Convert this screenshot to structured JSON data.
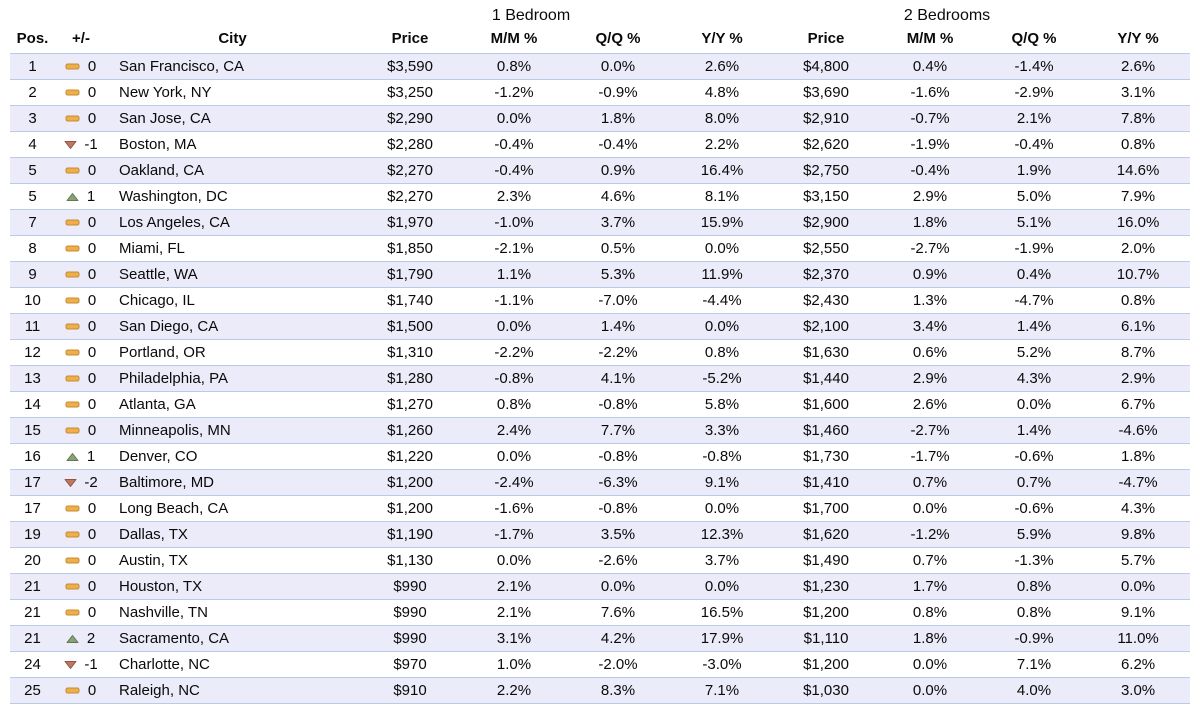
{
  "chart_data": {
    "type": "table",
    "group_headers": [
      "1 Bedroom",
      "2 Bedrooms"
    ],
    "columns": [
      "Pos.",
      "+/-",
      "City",
      "Price",
      "M/M %",
      "Q/Q %",
      "Y/Y %",
      "Price",
      "M/M %",
      "Q/Q %",
      "Y/Y %"
    ],
    "rows": [
      [
        "1",
        "same",
        "0",
        "San Francisco, CA",
        "$3,590",
        "0.8%",
        "0.0%",
        "2.6%",
        "$4,800",
        "0.4%",
        "-1.4%",
        "2.6%"
      ],
      [
        "2",
        "same",
        "0",
        "New York, NY",
        "$3,250",
        "-1.2%",
        "-0.9%",
        "4.8%",
        "$3,690",
        "-1.6%",
        "-2.9%",
        "3.1%"
      ],
      [
        "3",
        "same",
        "0",
        "San Jose, CA",
        "$2,290",
        "0.0%",
        "1.8%",
        "8.0%",
        "$2,910",
        "-0.7%",
        "2.1%",
        "7.8%"
      ],
      [
        "4",
        "down",
        "-1",
        "Boston, MA",
        "$2,280",
        "-0.4%",
        "-0.4%",
        "2.2%",
        "$2,620",
        "-1.9%",
        "-0.4%",
        "0.8%"
      ],
      [
        "5",
        "same",
        "0",
        "Oakland, CA",
        "$2,270",
        "-0.4%",
        "0.9%",
        "16.4%",
        "$2,750",
        "-0.4%",
        "1.9%",
        "14.6%"
      ],
      [
        "5",
        "up",
        "1",
        "Washington, DC",
        "$2,270",
        "2.3%",
        "4.6%",
        "8.1%",
        "$3,150",
        "2.9%",
        "5.0%",
        "7.9%"
      ],
      [
        "7",
        "same",
        "0",
        "Los Angeles, CA",
        "$1,970",
        "-1.0%",
        "3.7%",
        "15.9%",
        "$2,900",
        "1.8%",
        "5.1%",
        "16.0%"
      ],
      [
        "8",
        "same",
        "0",
        "Miami, FL",
        "$1,850",
        "-2.1%",
        "0.5%",
        "0.0%",
        "$2,550",
        "-2.7%",
        "-1.9%",
        "2.0%"
      ],
      [
        "9",
        "same",
        "0",
        "Seattle, WA",
        "$1,790",
        "1.1%",
        "5.3%",
        "11.9%",
        "$2,370",
        "0.9%",
        "0.4%",
        "10.7%"
      ],
      [
        "10",
        "same",
        "0",
        "Chicago, IL",
        "$1,740",
        "-1.1%",
        "-7.0%",
        "-4.4%",
        "$2,430",
        "1.3%",
        "-4.7%",
        "0.8%"
      ],
      [
        "11",
        "same",
        "0",
        "San Diego, CA",
        "$1,500",
        "0.0%",
        "1.4%",
        "0.0%",
        "$2,100",
        "3.4%",
        "1.4%",
        "6.1%"
      ],
      [
        "12",
        "same",
        "0",
        "Portland, OR",
        "$1,310",
        "-2.2%",
        "-2.2%",
        "0.8%",
        "$1,630",
        "0.6%",
        "5.2%",
        "8.7%"
      ],
      [
        "13",
        "same",
        "0",
        "Philadelphia, PA",
        "$1,280",
        "-0.8%",
        "4.1%",
        "-5.2%",
        "$1,440",
        "2.9%",
        "4.3%",
        "2.9%"
      ],
      [
        "14",
        "same",
        "0",
        "Atlanta, GA",
        "$1,270",
        "0.8%",
        "-0.8%",
        "5.8%",
        "$1,600",
        "2.6%",
        "0.0%",
        "6.7%"
      ],
      [
        "15",
        "same",
        "0",
        "Minneapolis, MN",
        "$1,260",
        "2.4%",
        "7.7%",
        "3.3%",
        "$1,460",
        "-2.7%",
        "1.4%",
        "-4.6%"
      ],
      [
        "16",
        "up",
        "1",
        "Denver, CO",
        "$1,220",
        "0.0%",
        "-0.8%",
        "-0.8%",
        "$1,730",
        "-1.7%",
        "-0.6%",
        "1.8%"
      ],
      [
        "17",
        "down",
        "-2",
        "Baltimore, MD",
        "$1,200",
        "-2.4%",
        "-6.3%",
        "9.1%",
        "$1,410",
        "0.7%",
        "0.7%",
        "-4.7%"
      ],
      [
        "17",
        "same",
        "0",
        "Long Beach, CA",
        "$1,200",
        "-1.6%",
        "-0.8%",
        "0.0%",
        "$1,700",
        "0.0%",
        "-0.6%",
        "4.3%"
      ],
      [
        "19",
        "same",
        "0",
        "Dallas, TX",
        "$1,190",
        "-1.7%",
        "3.5%",
        "12.3%",
        "$1,620",
        "-1.2%",
        "5.9%",
        "9.8%"
      ],
      [
        "20",
        "same",
        "0",
        "Austin, TX",
        "$1,130",
        "0.0%",
        "-2.6%",
        "3.7%",
        "$1,490",
        "0.7%",
        "-1.3%",
        "5.7%"
      ],
      [
        "21",
        "same",
        "0",
        "Houston, TX",
        "$990",
        "2.1%",
        "0.0%",
        "0.0%",
        "$1,230",
        "1.7%",
        "0.8%",
        "0.0%"
      ],
      [
        "21",
        "same",
        "0",
        "Nashville, TN",
        "$990",
        "2.1%",
        "7.6%",
        "16.5%",
        "$1,200",
        "0.8%",
        "0.8%",
        "9.1%"
      ],
      [
        "21",
        "up",
        "2",
        "Sacramento, CA",
        "$990",
        "3.1%",
        "4.2%",
        "17.9%",
        "$1,110",
        "1.8%",
        "-0.9%",
        "11.0%"
      ],
      [
        "24",
        "down",
        "-1",
        "Charlotte, NC",
        "$970",
        "1.0%",
        "-2.0%",
        "-3.0%",
        "$1,200",
        "0.0%",
        "7.1%",
        "6.2%"
      ],
      [
        "25",
        "same",
        "0",
        "Raleigh, NC",
        "$910",
        "2.2%",
        "8.3%",
        "7.1%",
        "$1,030",
        "0.0%",
        "4.0%",
        "3.0%"
      ]
    ]
  },
  "icons": {
    "same": {
      "name": "no-change-icon",
      "shape": "dash",
      "fill": "#efae49",
      "stroke": "#c68c32"
    },
    "up": {
      "name": "rank-up-icon",
      "shape": "up",
      "fill": "#87a178",
      "stroke": "#5f7a52"
    },
    "down": {
      "name": "rank-down-icon",
      "shape": "down",
      "fill": "#bc7862",
      "stroke": "#96543e"
    }
  },
  "colors": {
    "stripe": "#ebebf9",
    "row_border": "#b8cce6",
    "text": "#0a0a0a"
  }
}
